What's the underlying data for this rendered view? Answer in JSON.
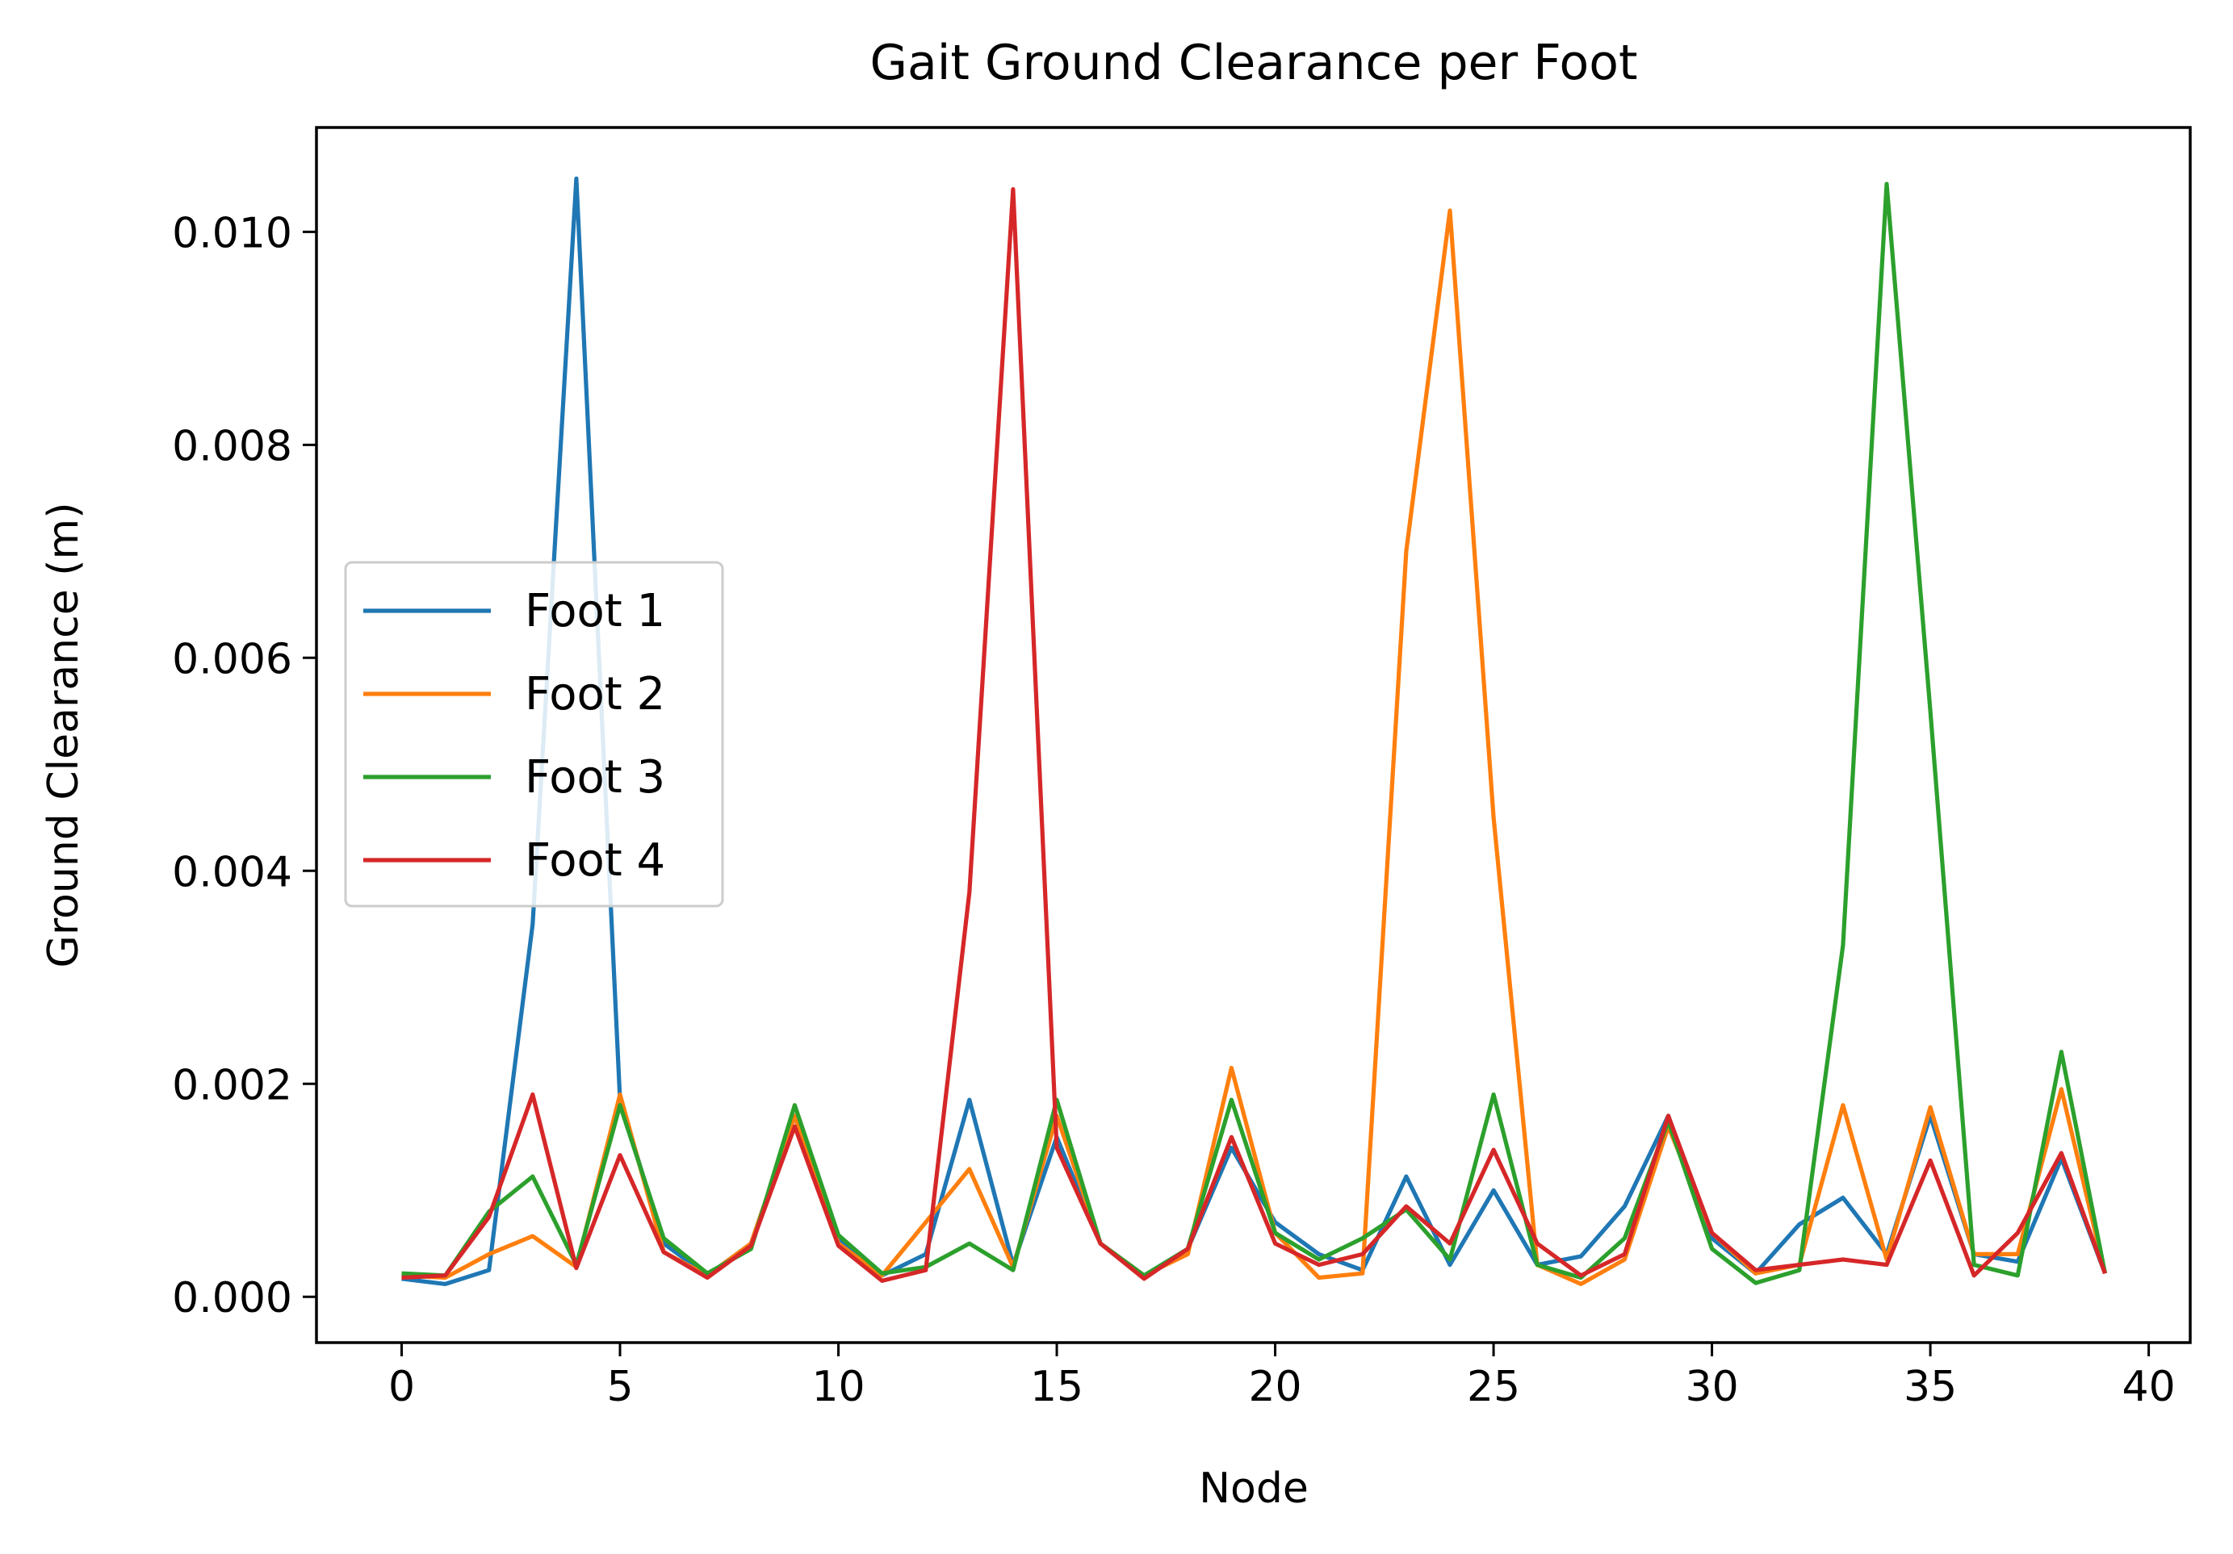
{
  "chart_data": {
    "type": "line",
    "title": "Gait Ground Clearance per Foot",
    "xlabel": "Node",
    "ylabel": "Ground Clearance (m)",
    "xlim": [
      -1.95,
      40.95
    ],
    "ylim": [
      -0.00043,
      0.01098
    ],
    "xticks": [
      0,
      5,
      10,
      15,
      20,
      25,
      30,
      35,
      40
    ],
    "xtick_labels": [
      "0",
      "5",
      "10",
      "15",
      "20",
      "25",
      "30",
      "35",
      "40"
    ],
    "yticks": [
      0.0,
      0.002,
      0.004,
      0.006,
      0.008,
      0.01
    ],
    "ytick_labels": [
      "0.000",
      "0.002",
      "0.004",
      "0.006",
      "0.008",
      "0.010"
    ],
    "grid": false,
    "legend_position": "center-left",
    "x": [
      0,
      1,
      2,
      3,
      4,
      5,
      6,
      7,
      8,
      9,
      10,
      11,
      12,
      13,
      14,
      15,
      16,
      17,
      18,
      19,
      20,
      21,
      22,
      23,
      24,
      25,
      26,
      27,
      28,
      29,
      30,
      31,
      32,
      33,
      34,
      35,
      36,
      37,
      38,
      39
    ],
    "series": [
      {
        "name": "Foot 1",
        "color": "#1f77b4",
        "values": [
          0.00017,
          0.00012,
          0.00025,
          0.0035,
          0.0105,
          0.00185,
          0.0005,
          0.0002,
          0.0005,
          0.0017,
          0.00055,
          0.0002,
          0.0004,
          0.00185,
          0.0003,
          0.0015,
          0.0005,
          0.0002,
          0.00045,
          0.0014,
          0.0007,
          0.0004,
          0.00025,
          0.00113,
          0.0003,
          0.001,
          0.0003,
          0.00038,
          0.00085,
          0.0017,
          0.00055,
          0.00022,
          0.00068,
          0.00093,
          0.0004,
          0.0017,
          0.0004,
          0.00033,
          0.0013,
          0.00022
        ]
      },
      {
        "name": "Foot 2",
        "color": "#ff7f0e",
        "values": [
          0.0002,
          0.00018,
          0.0004,
          0.00057,
          0.00028,
          0.0019,
          0.00042,
          0.0002,
          0.0005,
          0.0017,
          0.0005,
          0.0002,
          0.0007,
          0.0012,
          0.00028,
          0.0017,
          0.0005,
          0.0002,
          0.0004,
          0.00215,
          0.0006,
          0.00018,
          0.00022,
          0.007,
          0.0102,
          0.0045,
          0.0003,
          0.00012,
          0.00035,
          0.0016,
          0.0006,
          0.00022,
          0.0003,
          0.0018,
          0.00035,
          0.00178,
          0.0004,
          0.0004,
          0.00195,
          0.00022
        ]
      },
      {
        "name": "Foot 3",
        "color": "#2ca02c",
        "values": [
          0.00022,
          0.0002,
          0.0008,
          0.00113,
          0.0003,
          0.0018,
          0.00055,
          0.00022,
          0.00045,
          0.0018,
          0.00058,
          0.00022,
          0.00028,
          0.0005,
          0.00025,
          0.00185,
          0.0005,
          0.0002,
          0.00045,
          0.00185,
          0.0006,
          0.00035,
          0.00055,
          0.00082,
          0.00035,
          0.0019,
          0.0003,
          0.00018,
          0.00055,
          0.00165,
          0.00045,
          0.00013,
          0.00025,
          0.0033,
          0.01045,
          0.0055,
          0.0003,
          0.0002,
          0.0023,
          0.00022
        ]
      },
      {
        "name": "Foot 4",
        "color": "#d62728",
        "values": [
          0.00018,
          0.0002,
          0.00075,
          0.0019,
          0.00027,
          0.00133,
          0.00042,
          0.00018,
          0.00048,
          0.0016,
          0.00048,
          0.00015,
          0.00025,
          0.0038,
          0.0104,
          0.0014,
          0.0005,
          0.00017,
          0.00045,
          0.0015,
          0.0005,
          0.0003,
          0.0004,
          0.00085,
          0.0005,
          0.00138,
          0.0005,
          0.0002,
          0.0004,
          0.0017,
          0.0006,
          0.00025,
          0.0003,
          0.00035,
          0.0003,
          0.00128,
          0.0002,
          0.0006,
          0.00135,
          0.00022
        ]
      }
    ]
  }
}
